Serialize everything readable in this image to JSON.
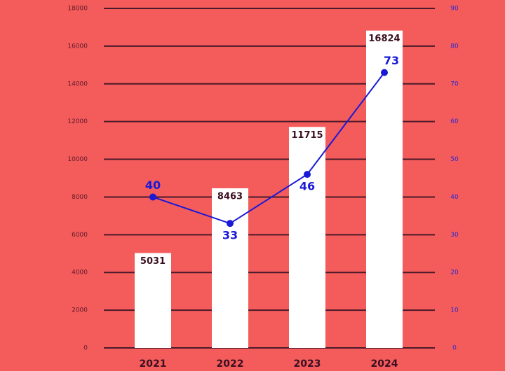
{
  "chart_data": {
    "type": "bar",
    "categories": [
      "2021",
      "2022",
      "2023",
      "2024"
    ],
    "series": [
      {
        "type": "bar",
        "color": "#ffffff",
        "values": [
          5031,
          8463,
          11715,
          16824
        ]
      },
      {
        "type": "line",
        "axis": "y2",
        "color": "#1a1ad6",
        "values": [
          40,
          33,
          46,
          73
        ]
      }
    ],
    "ylim": [
      0,
      18000
    ],
    "yticks": [
      0,
      2000,
      4000,
      6000,
      8000,
      10000,
      12000,
      14000,
      16000,
      18000
    ],
    "y2lim": [
      0,
      90
    ],
    "y2ticks": [
      0,
      10,
      20,
      30,
      40,
      50,
      60,
      70,
      80,
      90
    ],
    "grid": true,
    "background": "#f45b5b"
  }
}
